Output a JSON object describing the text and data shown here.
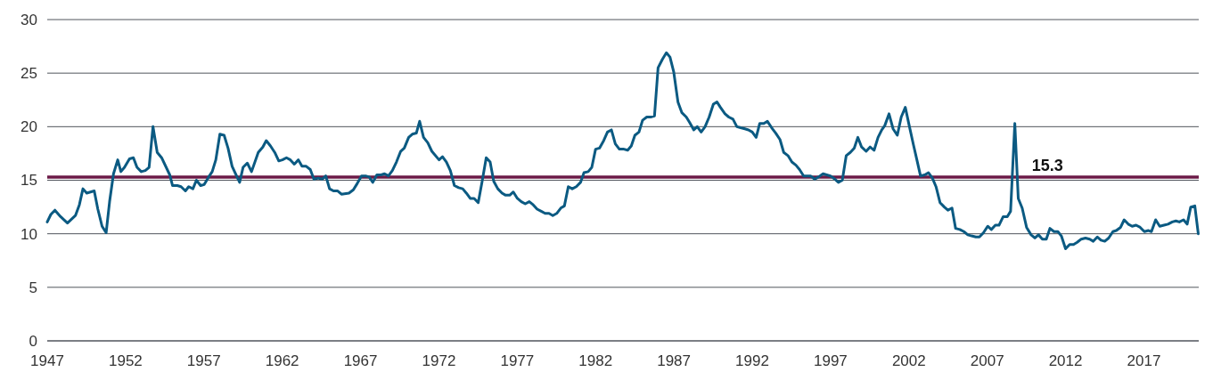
{
  "chart_data": {
    "type": "line",
    "x": [
      1947.0,
      1947.23,
      1947.49,
      1947.85,
      1948.29,
      1948.8,
      1949.05,
      1949.28,
      1949.52,
      1950.0,
      1950.23,
      1950.5,
      1950.76,
      1950.98,
      1951.23,
      1951.5,
      1951.7,
      1951.93,
      1952.25,
      1952.5,
      1952.73,
      1953.0,
      1953.26,
      1953.5,
      1953.75,
      1954.02,
      1954.3,
      1954.82,
      1955.0,
      1955.3,
      1955.54,
      1955.82,
      1956.03,
      1956.3,
      1956.52,
      1956.79,
      1957.02,
      1957.3,
      1957.53,
      1957.76,
      1958.02,
      1958.29,
      1958.54,
      1958.8,
      1959.05,
      1959.28,
      1959.5,
      1959.77,
      1960.04,
      1960.47,
      1960.76,
      1960.98,
      1961.25,
      1961.52,
      1961.78,
      1962.01,
      1962.27,
      1962.52,
      1962.77,
      1963.03,
      1963.26,
      1963.53,
      1963.79,
      1964.02,
      1964.3,
      1964.55,
      1964.78,
      1965.02,
      1965.27,
      1965.54,
      1965.78,
      1966.26,
      1966.54,
      1966.79,
      1967.06,
      1967.32,
      1967.55,
      1967.78,
      1968.04,
      1968.31,
      1968.53,
      1968.78,
      1969.03,
      1969.29,
      1969.56,
      1969.79,
      1970.07,
      1970.3,
      1970.56,
      1970.77,
      1971.02,
      1971.29,
      1971.55,
      1972.01,
      1972.23,
      1972.48,
      1972.73,
      1972.99,
      1973.26,
      1973.52,
      1973.75,
      1974.0,
      1974.25,
      1974.51,
      1974.76,
      1975.02,
      1975.27,
      1975.5,
      1975.76,
      1976.03,
      1976.26,
      1976.52,
      1976.75,
      1977.01,
      1977.26,
      1977.51,
      1977.77,
      1978.02,
      1978.27,
      1978.53,
      1978.78,
      1979.03,
      1979.27,
      1979.52,
      1979.78,
      1980.01,
      1980.26,
      1980.51,
      1980.77,
      1981.04,
      1981.26,
      1981.53,
      1981.76,
      1982.0,
      1982.25,
      1982.52,
      1982.76,
      1983.01,
      1983.26,
      1983.52,
      1983.81,
      1984.05,
      1984.28,
      1984.51,
      1984.77,
      1985.0,
      1985.27,
      1985.51,
      1985.76,
      1985.99,
      1986.27,
      1986.52,
      1986.75,
      1986.99,
      1987.26,
      1987.51,
      1987.79,
      1988.0,
      1988.27,
      1988.49,
      1988.74,
      1988.99,
      1989.25,
      1989.52,
      1989.75,
      1989.97,
      1990.26,
      1990.5,
      1990.77,
      1991.02,
      1991.26,
      1991.53,
      1991.76,
      1992.0,
      1992.25,
      1992.48,
      1992.74,
      1992.97,
      1993.24,
      1993.5,
      1993.77,
      1994.01,
      1994.28,
      1994.53,
      1994.79,
      1995.02,
      1995.28,
      1995.72,
      1995.99,
      1996.23,
      1996.52,
      1996.99,
      1997.28,
      1997.5,
      1997.75,
      1998.0,
      1998.26,
      1998.51,
      1998.74,
      1998.98,
      1999.27,
      1999.52,
      1999.78,
      2000.03,
      2000.27,
      2000.46,
      2000.73,
      2000.99,
      2001.26,
      2001.51,
      2001.77,
      2002.02,
      2002.29,
      2002.51,
      2002.74,
      2003.01,
      2003.25,
      2003.5,
      2003.73,
      2003.99,
      2004.26,
      2004.49,
      2004.75,
      2004.98,
      2005.25,
      2005.51,
      2005.76,
      2006.0,
      2006.27,
      2006.5,
      2006.76,
      2007.03,
      2007.26,
      2007.52,
      2007.75,
      2008.02,
      2008.28,
      2008.49,
      2008.76,
      2008.98,
      2009.23,
      2009.51,
      2009.8,
      2010.04,
      2010.27,
      2010.52,
      2010.77,
      2011.0,
      2011.26,
      2011.51,
      2011.73,
      2012.0,
      2012.26,
      2012.51,
      2012.74,
      2013.0,
      2013.27,
      2013.54,
      2013.77,
      2014.03,
      2014.26,
      2014.5,
      2014.75,
      2015.02,
      2015.24,
      2015.51,
      2015.74,
      2016.0,
      2016.25,
      2016.5,
      2016.76,
      2017.03,
      2017.29,
      2017.48,
      2017.75,
      2018.01,
      2018.28,
      2018.54,
      2018.81,
      2019.04,
      2019.26,
      2019.53,
      2019.76,
      2019.99,
      2020.25,
      2020.47
    ],
    "series": [
      {
        "color": "#0b5a82",
        "values": [
          11.1,
          11.8,
          12.2,
          11.6,
          11.0,
          11.7,
          12.7,
          14.2,
          13.8,
          14.0,
          12.3,
          10.7,
          10.1,
          13.0,
          15.6,
          16.9,
          15.8,
          16.2,
          17.0,
          17.1,
          16.2,
          15.8,
          15.9,
          16.2,
          20.0,
          17.6,
          17.1,
          15.5,
          14.5,
          14.5,
          14.4,
          14.0,
          14.4,
          14.2,
          15.0,
          14.5,
          14.6,
          15.3,
          15.8,
          16.9,
          19.3,
          19.2,
          18.0,
          16.3,
          15.5,
          14.8,
          16.2,
          16.6,
          15.8,
          17.6,
          18.1,
          18.7,
          18.2,
          17.6,
          16.8,
          16.9,
          17.1,
          16.9,
          16.5,
          16.9,
          16.3,
          16.3,
          16.0,
          15.1,
          15.2,
          15.1,
          15.4,
          14.2,
          14.0,
          14.0,
          13.7,
          13.8,
          14.1,
          14.7,
          15.4,
          15.4,
          15.3,
          14.8,
          15.5,
          15.5,
          15.6,
          15.4,
          15.9,
          16.7,
          17.7,
          18.0,
          19.0,
          19.3,
          19.4,
          20.5,
          19.0,
          18.5,
          17.7,
          16.9,
          17.2,
          16.7,
          15.9,
          14.5,
          14.3,
          14.2,
          13.8,
          13.3,
          13.3,
          12.9,
          14.9,
          17.1,
          16.7,
          14.9,
          14.2,
          13.8,
          13.6,
          13.6,
          13.9,
          13.3,
          13.0,
          12.8,
          13.0,
          12.7,
          12.3,
          12.1,
          11.9,
          11.9,
          11.7,
          11.9,
          12.4,
          12.6,
          14.4,
          14.2,
          14.4,
          14.8,
          15.7,
          15.8,
          16.2,
          17.9,
          18.0,
          18.7,
          19.5,
          19.7,
          18.4,
          17.9,
          17.9,
          17.8,
          18.2,
          19.2,
          19.5,
          20.6,
          20.9,
          20.9,
          21.0,
          25.5,
          26.3,
          26.9,
          26.5,
          25.1,
          22.3,
          21.3,
          20.9,
          20.4,
          19.7,
          20.0,
          19.5,
          20.0,
          20.9,
          22.1,
          22.3,
          21.8,
          21.2,
          20.9,
          20.7,
          20.0,
          19.9,
          19.8,
          19.7,
          19.5,
          19.0,
          20.3,
          20.3,
          20.5,
          19.9,
          19.4,
          18.8,
          17.6,
          17.3,
          16.7,
          16.4,
          16.0,
          15.4,
          15.4,
          15.1,
          15.3,
          15.6,
          15.4,
          15.1,
          14.8,
          15.0,
          17.3,
          17.6,
          18.0,
          19.0,
          18.1,
          17.7,
          18.1,
          17.8,
          19.0,
          19.7,
          20.1,
          21.2,
          19.8,
          19.2,
          20.9,
          21.8,
          20.1,
          18.3,
          16.9,
          15.4,
          15.5,
          15.7,
          15.2,
          14.4,
          12.9,
          12.5,
          12.2,
          12.4,
          10.5,
          10.4,
          10.2,
          9.9,
          9.8,
          9.7,
          9.7,
          10.1,
          10.7,
          10.4,
          10.8,
          10.8,
          11.6,
          11.6,
          12.1,
          20.3,
          13.3,
          12.4,
          10.6,
          9.9,
          9.6,
          9.9,
          9.5,
          9.5,
          10.5,
          10.2,
          10.2,
          9.8,
          8.6,
          9.0,
          9.0,
          9.2,
          9.5,
          9.6,
          9.5,
          9.3,
          9.7,
          9.4,
          9.3,
          9.6,
          10.2,
          10.3,
          10.6,
          11.3,
          10.9,
          10.7,
          10.8,
          10.6,
          10.2,
          10.3,
          10.2,
          11.3,
          10.7,
          10.8,
          10.9,
          11.1,
          11.2,
          11.1,
          11.3,
          10.9,
          12.5,
          12.6,
          10.0
        ]
      }
    ],
    "xlim": [
      1947,
      2020.5
    ],
    "xticks": [
      1947,
      1952,
      1957,
      1962,
      1967,
      1972,
      1977,
      1982,
      1987,
      1992,
      1997,
      2002,
      2007,
      2012,
      2017
    ],
    "ylim": [
      0,
      30
    ],
    "yticks": [
      0,
      5,
      10,
      15,
      20,
      25,
      30
    ],
    "grid": "y",
    "ref_lines": [
      {
        "axis": "y",
        "value": 15.3,
        "label": "15.3",
        "color": "#6b1a46"
      }
    ]
  }
}
